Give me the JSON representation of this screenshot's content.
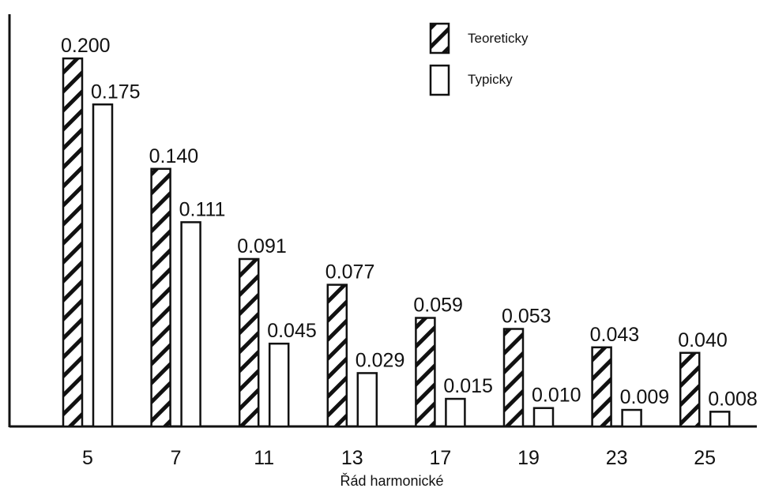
{
  "chart_data": {
    "type": "bar",
    "xlabel": "Řád harmonické",
    "categories": [
      "5",
      "7",
      "11",
      "13",
      "17",
      "19",
      "23",
      "25"
    ],
    "series": [
      {
        "name": "Teoreticky",
        "fill": "hatched",
        "values": [
          0.2,
          0.14,
          0.091,
          0.077,
          0.059,
          0.053,
          0.043,
          0.04
        ],
        "labels": [
          "0.200",
          "0.140",
          "0.091",
          "0.077",
          "0.059",
          "0.053",
          "0.043",
          "0.040"
        ]
      },
      {
        "name": "Typicky",
        "fill": "white",
        "values": [
          0.175,
          0.111,
          0.045,
          0.029,
          0.015,
          0.01,
          0.009,
          0.008
        ],
        "labels": [
          "0.175",
          "0.111",
          "0.045",
          "0.029",
          "0.015",
          "0.010",
          "0.009",
          "0.008"
        ]
      }
    ],
    "ylim": [
      0,
      0.2
    ],
    "grid": false,
    "legend_position": "top-right",
    "colors": {
      "stroke": "#111111",
      "background": "#ffffff"
    }
  }
}
